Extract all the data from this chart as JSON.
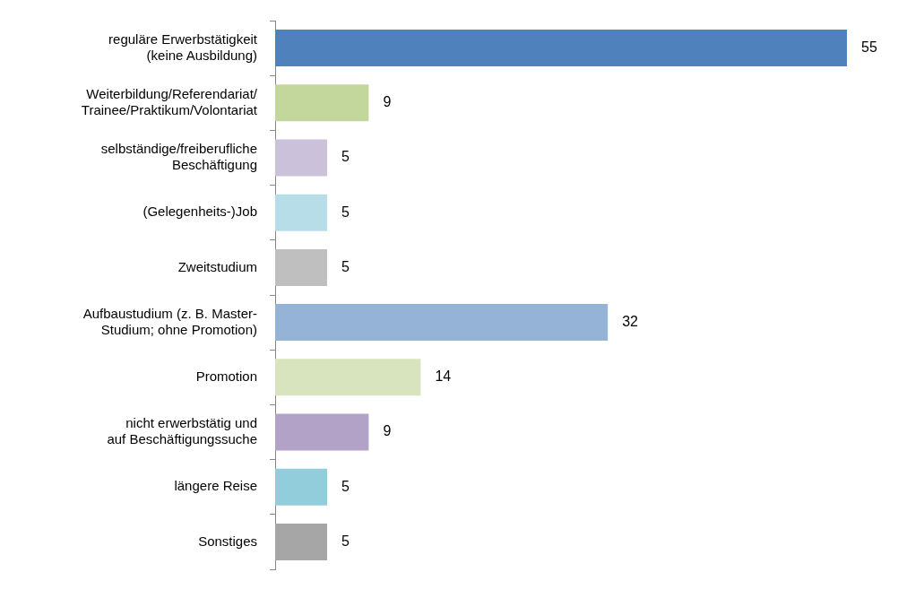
{
  "chart_data": {
    "type": "bar",
    "orientation": "horizontal",
    "data_labels": true,
    "legend": false,
    "categories": [
      "reguläre Erwerbstätigkeit\n(keine Ausbildung)",
      "Weiterbildung/Referendariat/\nTrainee/Praktikum/Volontariat",
      "selbständige/freiberufliche\nBeschäftigung",
      "(Gelegenheits-)Job",
      "Zweitstudium",
      "Aufbaustudium (z. B. Master-\nStudium; ohne Promotion)",
      "Promotion",
      "nicht erwerbstätig und\nauf Beschäftigungssuche",
      "längere Reise",
      "Sonstiges"
    ],
    "values": [
      55,
      9,
      5,
      5,
      5,
      32,
      14,
      9,
      5,
      5
    ],
    "colors": [
      "#4f81bd",
      "#c3d69b",
      "#ccc1da",
      "#b7dee8",
      "#bfbfbf",
      "#95b3d7",
      "#d7e4bd",
      "#b3a2c7",
      "#92cddc",
      "#a6a6a6"
    ]
  }
}
